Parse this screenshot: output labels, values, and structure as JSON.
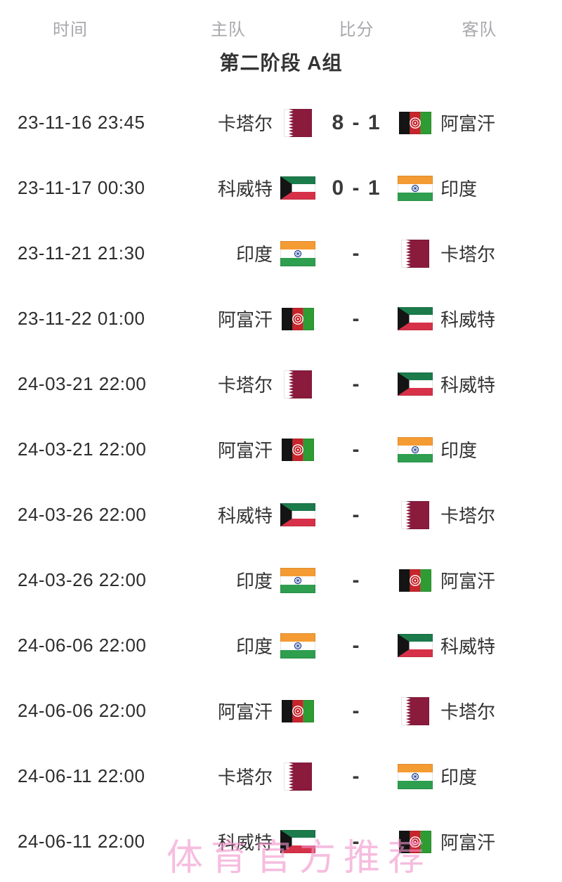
{
  "header": {
    "time": "时间",
    "home": "主队",
    "score": "比分",
    "away": "客队"
  },
  "section": {
    "title": "第二阶段 A组"
  },
  "watermark": {
    "text": "体育官方推荐"
  },
  "flag_colors": {
    "qatar": {
      "maroon": "#8A1B3D",
      "white": "#ffffff"
    },
    "kuwait": {
      "green": "#1B7B4B",
      "white": "#ffffff",
      "red": "#D63148",
      "black": "#141414"
    },
    "afghanistan": {
      "black": "#141414",
      "red": "#C8242C",
      "green": "#2E9C33",
      "emblem": "#ffffff"
    },
    "india": {
      "saffron": "#F59B33",
      "white": "#ffffff",
      "green": "#2E9E4F",
      "navy": "#1D3F8F"
    }
  },
  "matches": [
    {
      "time": "23-11-16 23:45",
      "home": {
        "name": "卡塔尔",
        "flag": "qatar"
      },
      "score": "8 - 1",
      "away": {
        "name": "阿富汗",
        "flag": "afghanistan"
      }
    },
    {
      "time": "23-11-17 00:30",
      "home": {
        "name": "科威特",
        "flag": "kuwait"
      },
      "score": "0 - 1",
      "away": {
        "name": "印度",
        "flag": "india"
      }
    },
    {
      "time": "23-11-21 21:30",
      "home": {
        "name": "印度",
        "flag": "india"
      },
      "score": "-",
      "away": {
        "name": "卡塔尔",
        "flag": "qatar"
      }
    },
    {
      "time": "23-11-22 01:00",
      "home": {
        "name": "阿富汗",
        "flag": "afghanistan"
      },
      "score": "-",
      "away": {
        "name": "科威特",
        "flag": "kuwait"
      }
    },
    {
      "time": "24-03-21 22:00",
      "home": {
        "name": "卡塔尔",
        "flag": "qatar"
      },
      "score": "-",
      "away": {
        "name": "科威特",
        "flag": "kuwait"
      }
    },
    {
      "time": "24-03-21 22:00",
      "home": {
        "name": "阿富汗",
        "flag": "afghanistan"
      },
      "score": "-",
      "away": {
        "name": "印度",
        "flag": "india"
      }
    },
    {
      "time": "24-03-26 22:00",
      "home": {
        "name": "科威特",
        "flag": "kuwait"
      },
      "score": "-",
      "away": {
        "name": "卡塔尔",
        "flag": "qatar"
      }
    },
    {
      "time": "24-03-26 22:00",
      "home": {
        "name": "印度",
        "flag": "india"
      },
      "score": "-",
      "away": {
        "name": "阿富汗",
        "flag": "afghanistan"
      }
    },
    {
      "time": "24-06-06 22:00",
      "home": {
        "name": "印度",
        "flag": "india"
      },
      "score": "-",
      "away": {
        "name": "科威特",
        "flag": "kuwait"
      }
    },
    {
      "time": "24-06-06 22:00",
      "home": {
        "name": "阿富汗",
        "flag": "afghanistan"
      },
      "score": "-",
      "away": {
        "name": "卡塔尔",
        "flag": "qatar"
      }
    },
    {
      "time": "24-06-11 22:00",
      "home": {
        "name": "卡塔尔",
        "flag": "qatar"
      },
      "score": "-",
      "away": {
        "name": "印度",
        "flag": "india"
      }
    },
    {
      "time": "24-06-11 22:00",
      "home": {
        "name": "科威特",
        "flag": "kuwait"
      },
      "score": "-",
      "away": {
        "name": "阿富汗",
        "flag": "afghanistan"
      }
    }
  ]
}
